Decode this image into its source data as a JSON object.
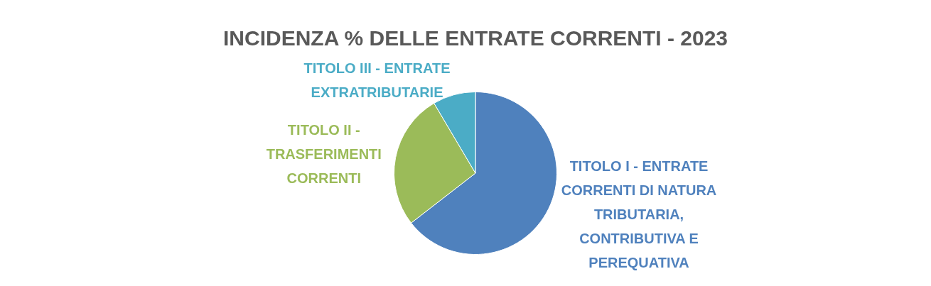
{
  "chart_data": {
    "type": "pie",
    "title": "INCIDENZA % DELLE ENTRATE CORRENTI - 2023",
    "categories": [
      "TITOLO I - ENTRATE CORRENTI DI NATURA TRIBUTARIA, CONTRIBUTIVA E PEREQUATIVA",
      "TITOLO II - TRASFERIMENTI CORRENTI",
      "TITOLO III - ENTRATE EXTRATRIBUTARIE"
    ],
    "values": [
      64.5,
      27,
      8.5
    ],
    "colors": [
      "#4f81bd",
      "#9bbb59",
      "#4bacc6"
    ]
  }
}
